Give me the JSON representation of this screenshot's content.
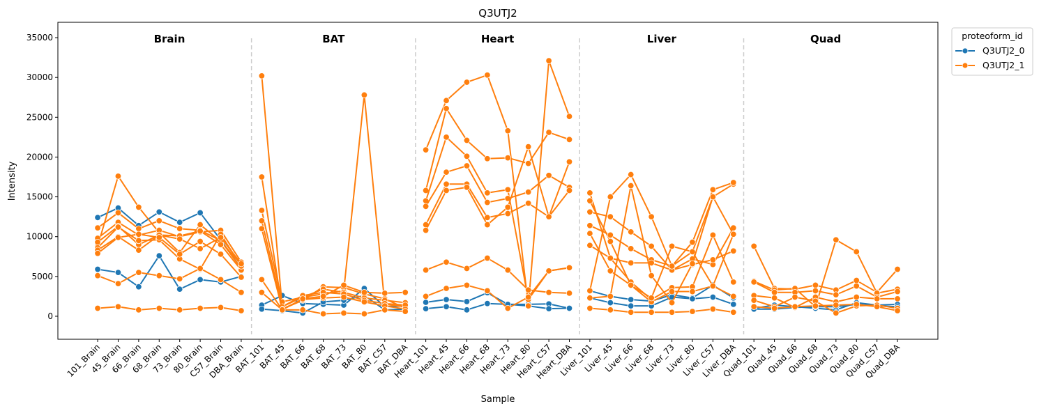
{
  "chart_data": {
    "type": "line",
    "title": "Q3UTJ2",
    "xlabel": "Sample",
    "ylabel": "Intensity",
    "ylim": [
      -2890,
      36930
    ],
    "yticks": [
      0,
      5000,
      10000,
      15000,
      20000,
      25000,
      30000,
      35000
    ],
    "grid": false,
    "legend": {
      "title": "proteoform_id",
      "placement": "outside-top-right"
    },
    "categories": [
      "101_Brain",
      "45_Brain",
      "66_Brain",
      "68_Brain",
      "73_Brain",
      "80_Brain",
      "C57_Brain",
      "DBA_Brain",
      "BAT_101",
      "BAT_45",
      "BAT_66",
      "BAT_68",
      "BAT_73",
      "BAT_80",
      "BAT_C57",
      "BAT_DBA",
      "Heart_101",
      "Heart_45",
      "Heart_66",
      "Heart_68",
      "Heart_73",
      "Heart_80",
      "Heart_C57",
      "Heart_DBA",
      "Liver_101",
      "Liver_45",
      "Liver_66",
      "Liver_68",
      "Liver_73",
      "Liver_80",
      "Liver_C57",
      "Liver_DBA",
      "Quad_101",
      "Quad_45",
      "Quad_66",
      "Quad_68",
      "Quad_73",
      "Quad_80",
      "Quad_C57",
      "Quad_DBA"
    ],
    "groups": [
      "Brain",
      "BAT",
      "Heart",
      "Liver",
      "Quad"
    ],
    "series": [
      {
        "name": "Q3UTJ2_0",
        "color": "#1f77b4",
        "lines": [
          {
            "group": 0,
            "values": [
              12400,
              13600,
              11400,
              13100,
              11800,
              13000,
              9600,
              6000
            ]
          },
          {
            "group": 0,
            "values": [
              5900,
              5500,
              3700,
              7600,
              3400,
              4600,
              4300,
              5000
            ]
          },
          {
            "group": 1,
            "values": [
              1400,
              2600,
              1600,
              1500,
              1400,
              3500,
              1200,
              1300
            ]
          },
          {
            "group": 1,
            "values": [
              900,
              700,
              400,
              1800,
              2000,
              2600,
              800,
              900
            ]
          },
          {
            "group": 2,
            "values": [
              1750,
              2100,
              1850,
              2950,
              1500,
              1500,
              1550,
              1000
            ]
          },
          {
            "group": 2,
            "values": [
              950,
              1200,
              800,
              1600,
              1500,
              1300,
              950,
              1000
            ]
          },
          {
            "group": 3,
            "values": [
              3200,
              2500,
              2100,
              1900,
              2700,
              2300,
              3900,
              2300
            ]
          },
          {
            "group": 3,
            "values": [
              2300,
              1700,
              1300,
              1300,
              2400,
              2200,
              2400,
              1500
            ]
          },
          {
            "group": 4,
            "values": [
              1000,
              1400,
              1200,
              1000,
              800,
              1700,
              1400,
              1500
            ]
          },
          {
            "group": 4,
            "values": [
              900,
              900,
              1100,
              1200,
              1200,
              1500,
              1300,
              1200
            ]
          }
        ]
      },
      {
        "name": "Q3UTJ2_1",
        "color": "#ff7f0e",
        "lines": [
          {
            "group": 0,
            "values": [
              8800,
              17600,
              13700,
              10500,
              8000,
              11500,
              9400,
              6500
            ]
          },
          {
            "group": 0,
            "values": [
              11100,
              13000,
              11000,
              12000,
              11000,
              10800,
              9500,
              6000
            ]
          },
          {
            "group": 0,
            "values": [
              9800,
              11800,
              10200,
              10800,
              10000,
              10600,
              10800,
              6800
            ]
          },
          {
            "group": 0,
            "values": [
              9300,
              11300,
              9000,
              10200,
              10100,
              10700,
              9000,
              5800
            ]
          },
          {
            "group": 0,
            "values": [
              8600,
              11200,
              9500,
              9600,
              7200,
              5900,
              10300,
              6300
            ]
          },
          {
            "group": 0,
            "values": [
              8300,
              10000,
              8300,
              10200,
              9700,
              8500,
              9900,
              6600
            ]
          },
          {
            "group": 0,
            "values": [
              7900,
              9900,
              10300,
              9900,
              7800,
              9400,
              7800,
              4900
            ]
          },
          {
            "group": 0,
            "values": [
              5100,
              4100,
              5500,
              5100,
              4700,
              6000,
              4600,
              3000
            ]
          },
          {
            "group": 0,
            "values": [
              1000,
              1200,
              800,
              1000,
              800,
              1000,
              1100,
              700
            ]
          },
          {
            "group": 1,
            "values": [
              30200,
              1200,
              2400,
              2800,
              3200,
              27800,
              1500,
              1200
            ]
          },
          {
            "group": 1,
            "values": [
              17500,
              900,
              2000,
              3700,
              3600,
              2800,
              2200,
              1000
            ]
          },
          {
            "group": 1,
            "values": [
              13300,
              1800,
              2400,
              3400,
              3000,
              2300,
              2000,
              1700
            ]
          },
          {
            "group": 1,
            "values": [
              12000,
              1200,
              2600,
              3000,
              2800,
              2000,
              1600,
              1400
            ]
          },
          {
            "group": 1,
            "values": [
              11000,
              900,
              2100,
              2300,
              2400,
              1800,
              1300,
              900
            ]
          },
          {
            "group": 1,
            "values": [
              4600,
              800,
              2200,
              2500,
              3900,
              3000,
              2900,
              3000
            ]
          },
          {
            "group": 1,
            "values": [
              3000,
              800,
              800,
              300,
              400,
              300,
              800,
              600
            ]
          },
          {
            "group": 2,
            "values": [
              20900,
              27100,
              29400,
              30300,
              23300,
              1300,
              32100,
              25100
            ]
          },
          {
            "group": 2,
            "values": [
              15800,
              26100,
              22100,
              19800,
              19900,
              19200,
              23100,
              22200
            ]
          },
          {
            "group": 2,
            "values": [
              14500,
              22500,
              20100,
              15500,
              15900,
              2100,
              5700,
              6100
            ]
          },
          {
            "group": 2,
            "values": [
              13800,
              18100,
              18900,
              14300,
              14800,
              15600,
              17700,
              16200
            ]
          },
          {
            "group": 2,
            "values": [
              11500,
              16600,
              16600,
              12400,
              12900,
              14200,
              12500,
              19400
            ]
          },
          {
            "group": 2,
            "values": [
              10800,
              15800,
              16200,
              11500,
              13700,
              21300,
              12500,
              15800
            ]
          },
          {
            "group": 2,
            "values": [
              5800,
              6800,
              6000,
              7300,
              5800,
              3300,
              3000,
              2900
            ]
          },
          {
            "group": 2,
            "values": [
              2500,
              3500,
              3900,
              3200,
              1000,
              2400,
              5700,
              6100
            ]
          },
          {
            "group": 3,
            "values": [
              15500,
              7300,
              4300,
              2100,
              3600,
              3700,
              10200,
              4300
            ]
          },
          {
            "group": 3,
            "values": [
              14500,
              9400,
              3900,
              1800,
              3100,
              3100,
              3800,
              2500
            ]
          },
          {
            "group": 3,
            "values": [
              13100,
              12500,
              10600,
              8800,
              5800,
              7200,
              6500,
              11100
            ]
          },
          {
            "group": 3,
            "values": [
              11400,
              10200,
              8500,
              7100,
              6300,
              8100,
              15000,
              16600
            ]
          },
          {
            "group": 3,
            "values": [
              10400,
              5700,
              3900,
              2300,
              8800,
              8100,
              3800,
              10300
            ]
          },
          {
            "group": 3,
            "values": [
              8900,
              7300,
              6700,
              6700,
              5800,
              6500,
              7100,
              8200
            ]
          },
          {
            "group": 3,
            "values": [
              1000,
              800,
              500,
              500,
              500,
              600,
              900,
              500
            ]
          },
          {
            "group": 3,
            "values": [
              3200,
              15000,
              17800,
              12500,
              6300,
              9300,
              15900,
              16800
            ]
          },
          {
            "group": 3,
            "values": [
              2300,
              2500,
              16400,
              5100,
              1700,
              6600,
              15000,
              10300
            ]
          },
          {
            "group": 4,
            "values": [
              8800,
              3500,
              3400,
              3900,
              3300,
              4500,
              3000,
              5900
            ]
          },
          {
            "group": 4,
            "values": [
              4400,
              3300,
              3500,
              1200,
              9600,
              8100,
              2900,
              3400
            ]
          },
          {
            "group": 4,
            "values": [
              4300,
              3000,
              3000,
              3200,
              2700,
              3800,
              2400,
              3100
            ]
          },
          {
            "group": 4,
            "values": [
              2600,
              2300,
              1100,
              2400,
              1800,
              2400,
              2200,
              2200
            ]
          },
          {
            "group": 4,
            "values": [
              2000,
              1200,
              2400,
              1900,
              400,
              1300,
              1400,
              1000
            ]
          },
          {
            "group": 4,
            "values": [
              1200,
              1000,
              1200,
              1300,
              1400,
              1500,
              1200,
              700
            ]
          }
        ]
      }
    ]
  }
}
